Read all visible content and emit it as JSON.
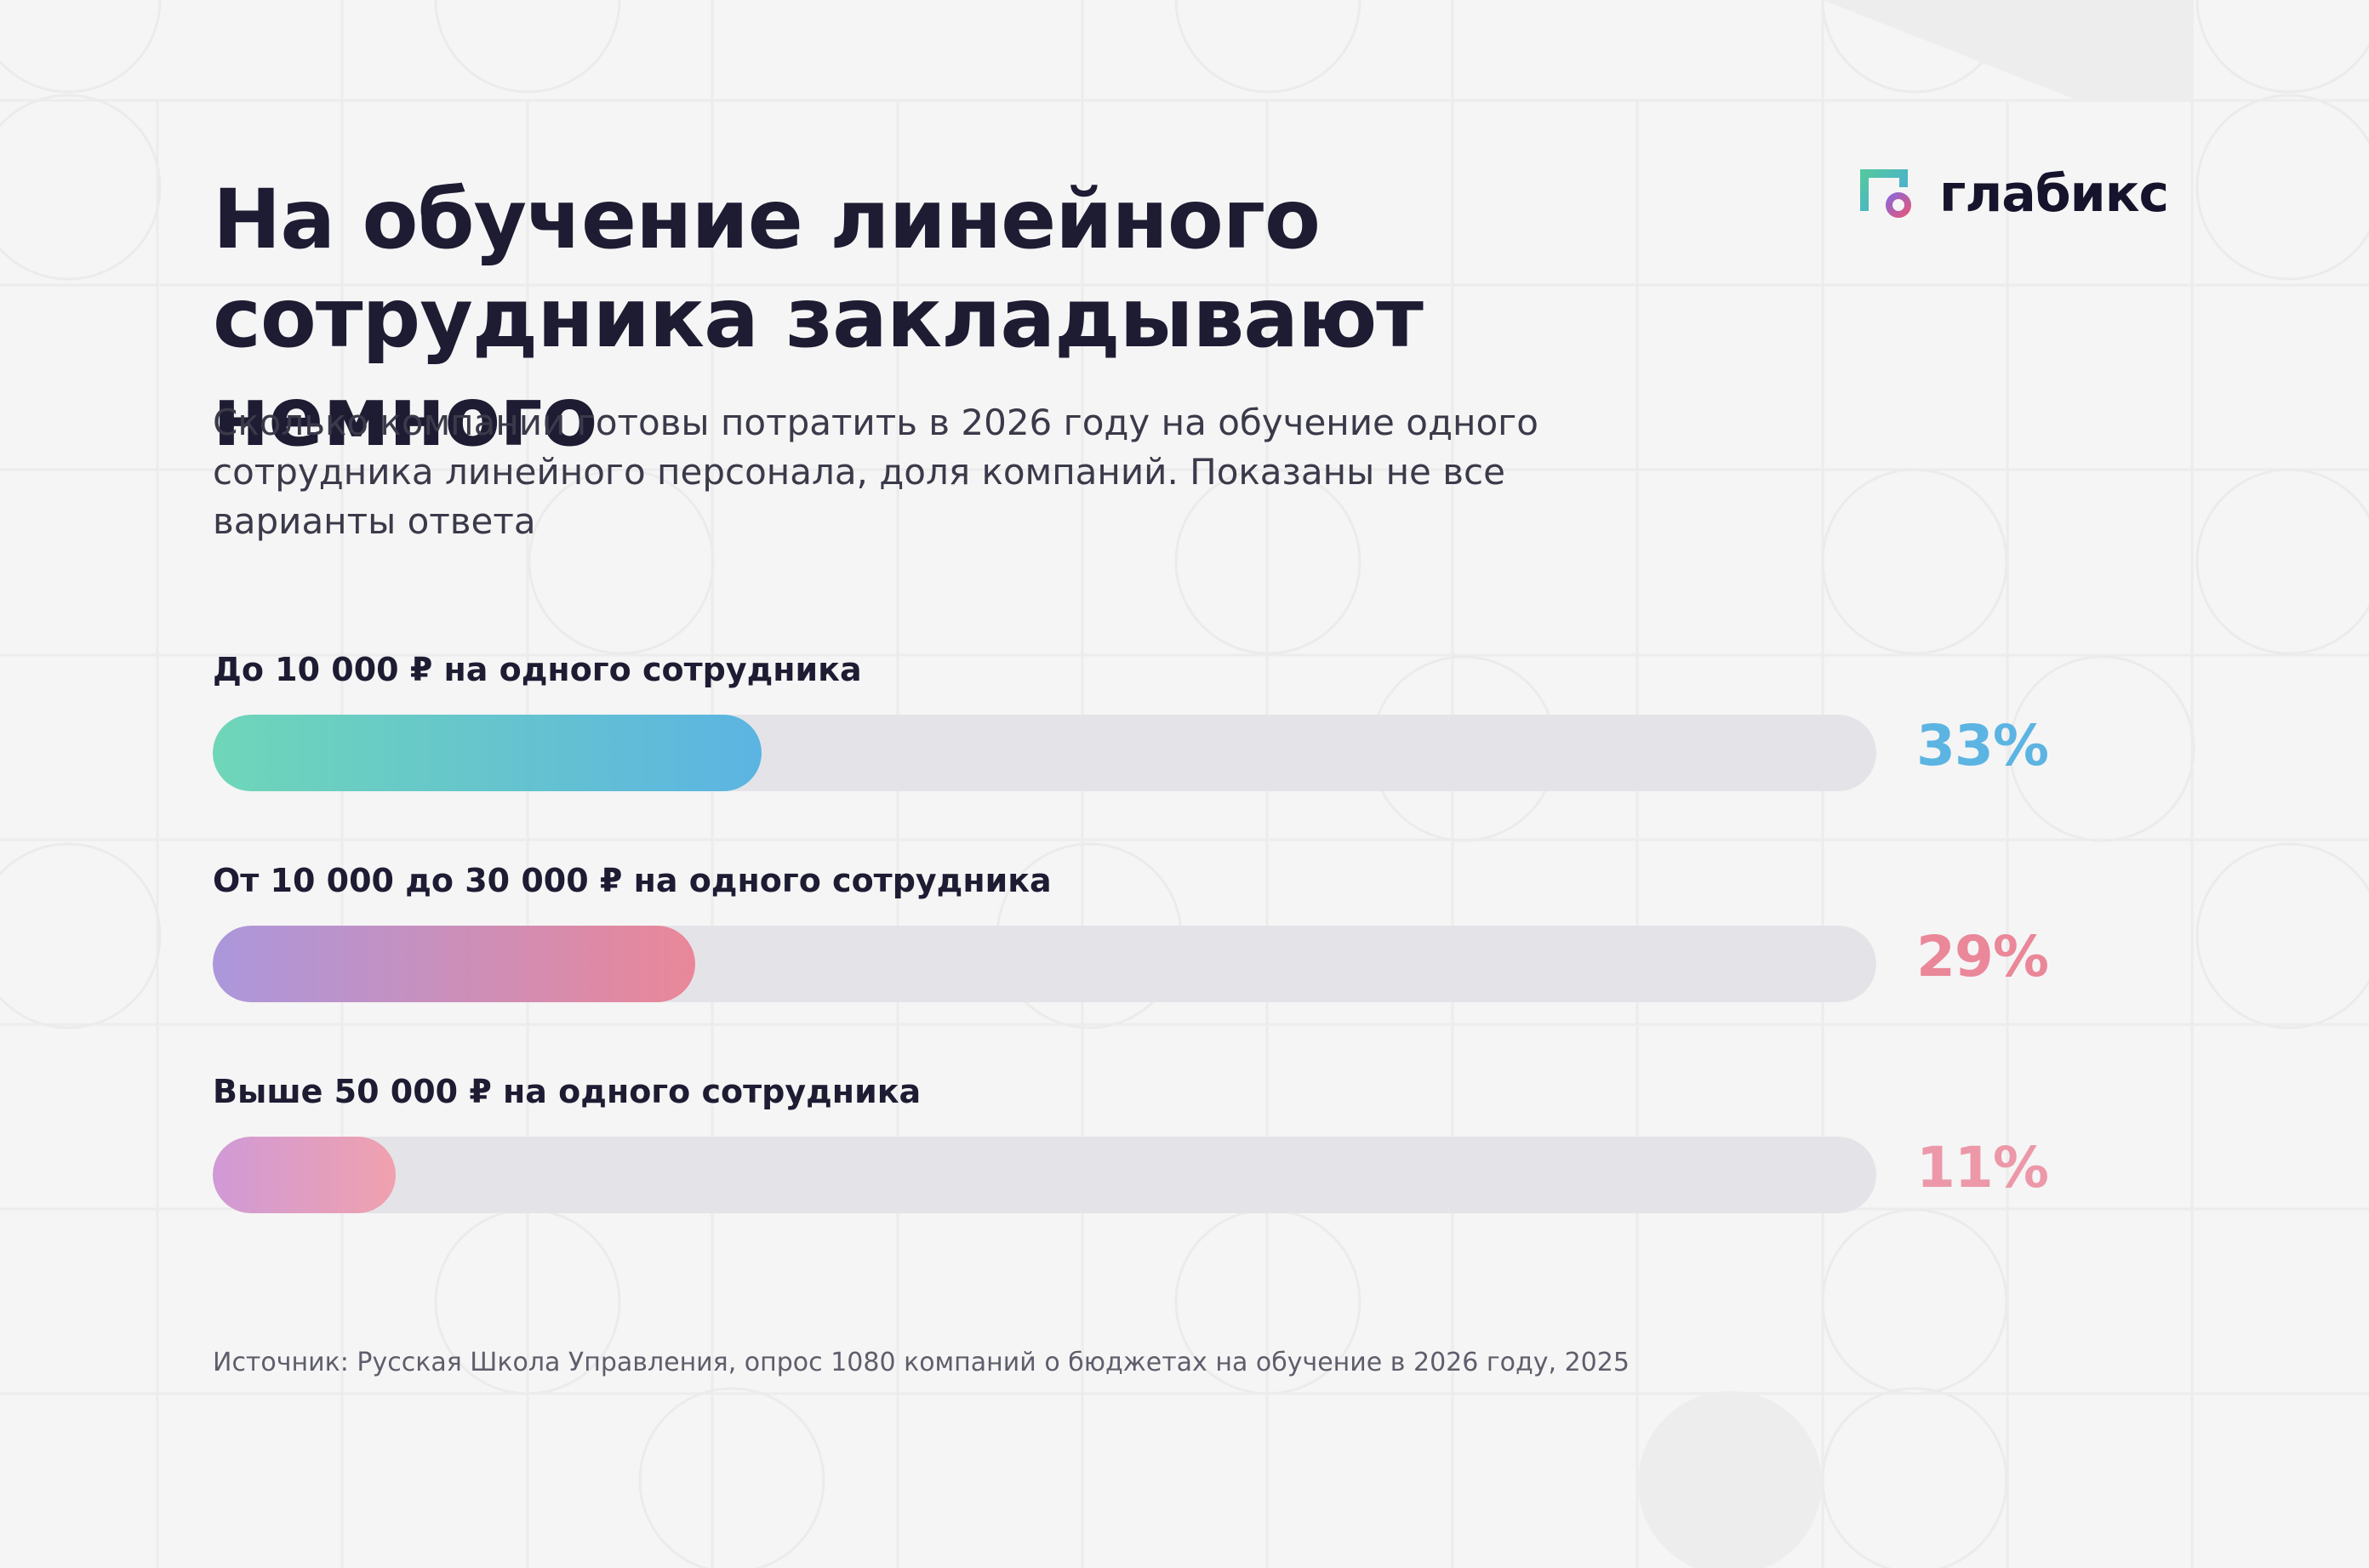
{
  "header": {
    "title": "На обучение линейного сотрудника закладывают немного",
    "subtitle": "Сколько компании готовы потратить в 2026 году на обучение одного сотрудника линейного персонала, доля компаний. Показаны не все варианты ответа"
  },
  "brand": {
    "name": "глабикс",
    "icon": "glabix-logo-icon",
    "colors": [
      "#52c8a0",
      "#4aa8de",
      "#8e67d6",
      "#e0577f"
    ]
  },
  "chart_data": {
    "type": "bar",
    "orientation": "horizontal",
    "title": "На обучение линейного сотрудника закладывают немного",
    "unit": "%",
    "xlim": [
      0,
      100
    ],
    "categories": [
      "До 10 000 ₽ на одного сотрудника",
      "От 10 000 до 30 000 ₽ на одного сотрудника",
      "Выше 50 000 ₽ на одного сотрудника"
    ],
    "values": [
      33,
      29,
      11
    ],
    "value_labels": [
      "33%",
      "29%",
      "11%"
    ],
    "colors": [
      {
        "start": "#6fd6b8",
        "end": "#5cb4e2",
        "label": "#5cb4e2"
      },
      {
        "start": "#ab97dc",
        "end": "#ea8799",
        "label": "#ea8799"
      },
      {
        "start": "#d09ad6",
        "end": "#f0a1ae",
        "label": "#ec98a9"
      }
    ]
  },
  "footer": {
    "source": "Источник: Русская Школа Управления, опрос 1080 компаний о бюджетах на обучение в 2026 году, 2025"
  }
}
